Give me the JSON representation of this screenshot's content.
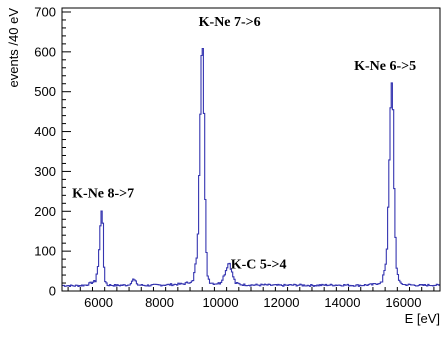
{
  "chart_data": {
    "type": "line",
    "title": "",
    "xlabel": "E [eV]",
    "ylabel": "events /40 eV",
    "xlim": [
      4800,
      17200
    ],
    "ylim": [
      0,
      710
    ],
    "x_ticks": [
      6000,
      8000,
      10000,
      12000,
      14000,
      16000
    ],
    "y_ticks": [
      0,
      100,
      200,
      300,
      400,
      500,
      600,
      700
    ],
    "grid": false,
    "legend": "none",
    "line_color": "#3535b0",
    "series": [
      {
        "style": "step-histogram",
        "bin_width": 40,
        "x": [
          4800,
          5200,
          5600,
          5900,
          6000,
          6050,
          6080,
          6120,
          6150,
          6180,
          6220,
          6300,
          6600,
          7000,
          7150,
          7300,
          7600,
          8000,
          8400,
          8800,
          9100,
          9250,
          9340,
          9400,
          9440,
          9480,
          9520,
          9580,
          9650,
          9800,
          10000,
          10150,
          10250,
          10300,
          10400,
          10500,
          10700,
          11000,
          11500,
          12000,
          12500,
          13000,
          13500,
          14000,
          14500,
          15000,
          15300,
          15450,
          15550,
          15600,
          15650,
          15700,
          15760,
          15850,
          16000,
          16300,
          16600,
          17000,
          17200
        ],
        "y": [
          14,
          13,
          15,
          25,
          70,
          150,
          200,
          210,
          140,
          60,
          25,
          15,
          14,
          15,
          30,
          15,
          14,
          15,
          16,
          18,
          25,
          100,
          450,
          670,
          560,
          330,
          120,
          40,
          22,
          18,
          20,
          45,
          68,
          70,
          40,
          20,
          16,
          15,
          15,
          14,
          15,
          14,
          15,
          15,
          14,
          16,
          22,
          80,
          350,
          530,
          500,
          260,
          70,
          25,
          16,
          15,
          14,
          15,
          14
        ]
      }
    ],
    "annotations": [
      {
        "text": "K-Ne 8->7",
        "x": 6150,
        "y": 235
      },
      {
        "text": "K-Ne 7->6",
        "x": 10300,
        "y": 665
      },
      {
        "text": "K-C 5->4",
        "x": 11250,
        "y": 57
      },
      {
        "text": "K-Ne 6->5",
        "x": 15400,
        "y": 555
      }
    ]
  }
}
